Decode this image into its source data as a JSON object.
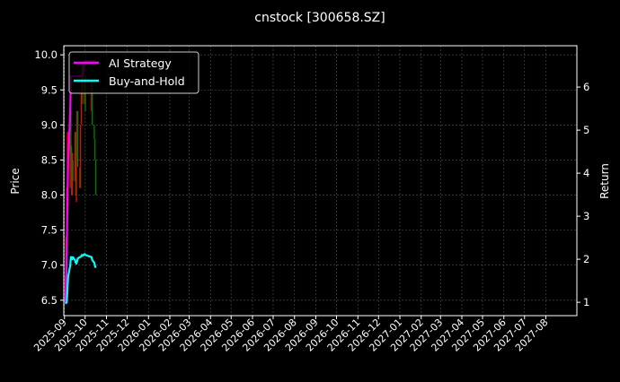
{
  "chart_data": {
    "type": "line",
    "title": "cnstock [300658.SZ]",
    "xlabel": "",
    "ylabel_left": "Price",
    "ylabel_right": "Return",
    "ylim_left": [
      6.28,
      10.13
    ],
    "ylim_right": [
      0.69,
      6.96
    ],
    "xlim": [
      "2025-08-31",
      "2027-09-15"
    ],
    "grid": true,
    "legend": "top-left",
    "background": "#000000",
    "x_ticks": [
      "2025-09",
      "2025-10",
      "2025-11",
      "2025-12",
      "2026-01",
      "2026-02",
      "2026-03",
      "2026-04",
      "2026-05",
      "2026-06",
      "2026-07",
      "2026-08",
      "2026-09",
      "2026-10",
      "2026-11",
      "2026-12",
      "2027-01",
      "2027-02",
      "2027-03",
      "2027-04",
      "2027-05",
      "2027-06",
      "2027-07",
      "2027-08"
    ],
    "y_ticks_left": [
      "6.5",
      "7.0",
      "7.5",
      "8.0",
      "8.5",
      "9.0",
      "9.5",
      "10.0"
    ],
    "y_ticks_right": [
      "1",
      "2",
      "3",
      "4",
      "5",
      "6"
    ],
    "candles": {
      "up_color": "#ff0000",
      "down_color": "#008000",
      "dates": [
        "2025-09-01",
        "2025-09-02",
        "2025-09-03",
        "2025-09-04",
        "2025-09-05",
        "2025-09-08",
        "2025-09-09",
        "2025-09-10",
        "2025-09-11",
        "2025-09-12",
        "2025-09-15",
        "2025-09-16",
        "2025-09-17",
        "2025-09-18",
        "2025-09-19",
        "2025-09-22",
        "2025-09-23",
        "2025-09-24",
        "2025-09-25",
        "2025-09-26",
        "2025-09-29",
        "2025-09-30",
        "2025-10-09",
        "2025-10-10",
        "2025-10-13",
        "2025-10-14",
        "2025-10-15"
      ],
      "open": [
        6.55,
        6.85,
        7.4,
        8.1,
        7.85,
        8.1,
        9.2,
        8.7,
        8.0,
        8.5,
        8.2,
        8.9,
        7.9,
        8.5,
        9.2,
        8.4,
        8.1,
        9.0,
        9.5,
        9.9,
        9.3,
        9.7,
        9.2,
        9.6,
        9.0,
        8.8,
        8.5
      ],
      "close": [
        6.85,
        7.4,
        8.1,
        8.9,
        8.9,
        8.8,
        8.5,
        8.0,
        8.6,
        8.2,
        8.9,
        8.0,
        8.5,
        9.2,
        8.4,
        8.1,
        9.0,
        9.5,
        9.9,
        9.3,
        9.7,
        9.2,
        9.6,
        9.0,
        8.8,
        8.5,
        8.0
      ]
    },
    "series": [
      {
        "name": "AI Strategy",
        "axis": "right",
        "color": "#ff00ff",
        "dates": [
          "2025-09-01",
          "2025-09-02",
          "2025-09-03",
          "2025-09-04",
          "2025-09-05",
          "2025-09-08",
          "2025-09-09",
          "2025-09-10",
          "2025-09-26",
          "2025-09-29",
          "2025-10-15"
        ],
        "values": [
          1.0,
          1.3,
          2.2,
          3.3,
          4.3,
          5.4,
          6.25,
          6.25,
          6.25,
          6.6,
          6.6
        ]
      },
      {
        "name": "Buy-and-Hold",
        "axis": "right",
        "color": "#00ffff",
        "dates": [
          "2025-09-01",
          "2025-09-02",
          "2025-09-03",
          "2025-09-04",
          "2025-09-05",
          "2025-09-08",
          "2025-09-09",
          "2025-09-10",
          "2025-09-11",
          "2025-09-12",
          "2025-09-15",
          "2025-09-16",
          "2025-09-17",
          "2025-09-18",
          "2025-09-19",
          "2025-09-22",
          "2025-09-23",
          "2025-09-24",
          "2025-09-25",
          "2025-09-26",
          "2025-09-29",
          "2025-09-30",
          "2025-10-09",
          "2025-10-10",
          "2025-10-13",
          "2025-10-14",
          "2025-10-15"
        ],
        "values": [
          1.0,
          0.98,
          1.0,
          1.3,
          1.6,
          1.85,
          2.05,
          2.05,
          2.0,
          2.05,
          1.98,
          1.92,
          1.9,
          1.95,
          2.02,
          2.05,
          2.05,
          2.07,
          2.1,
          2.08,
          2.12,
          2.1,
          2.05,
          1.98,
          1.92,
          1.85,
          1.8
        ]
      }
    ]
  }
}
